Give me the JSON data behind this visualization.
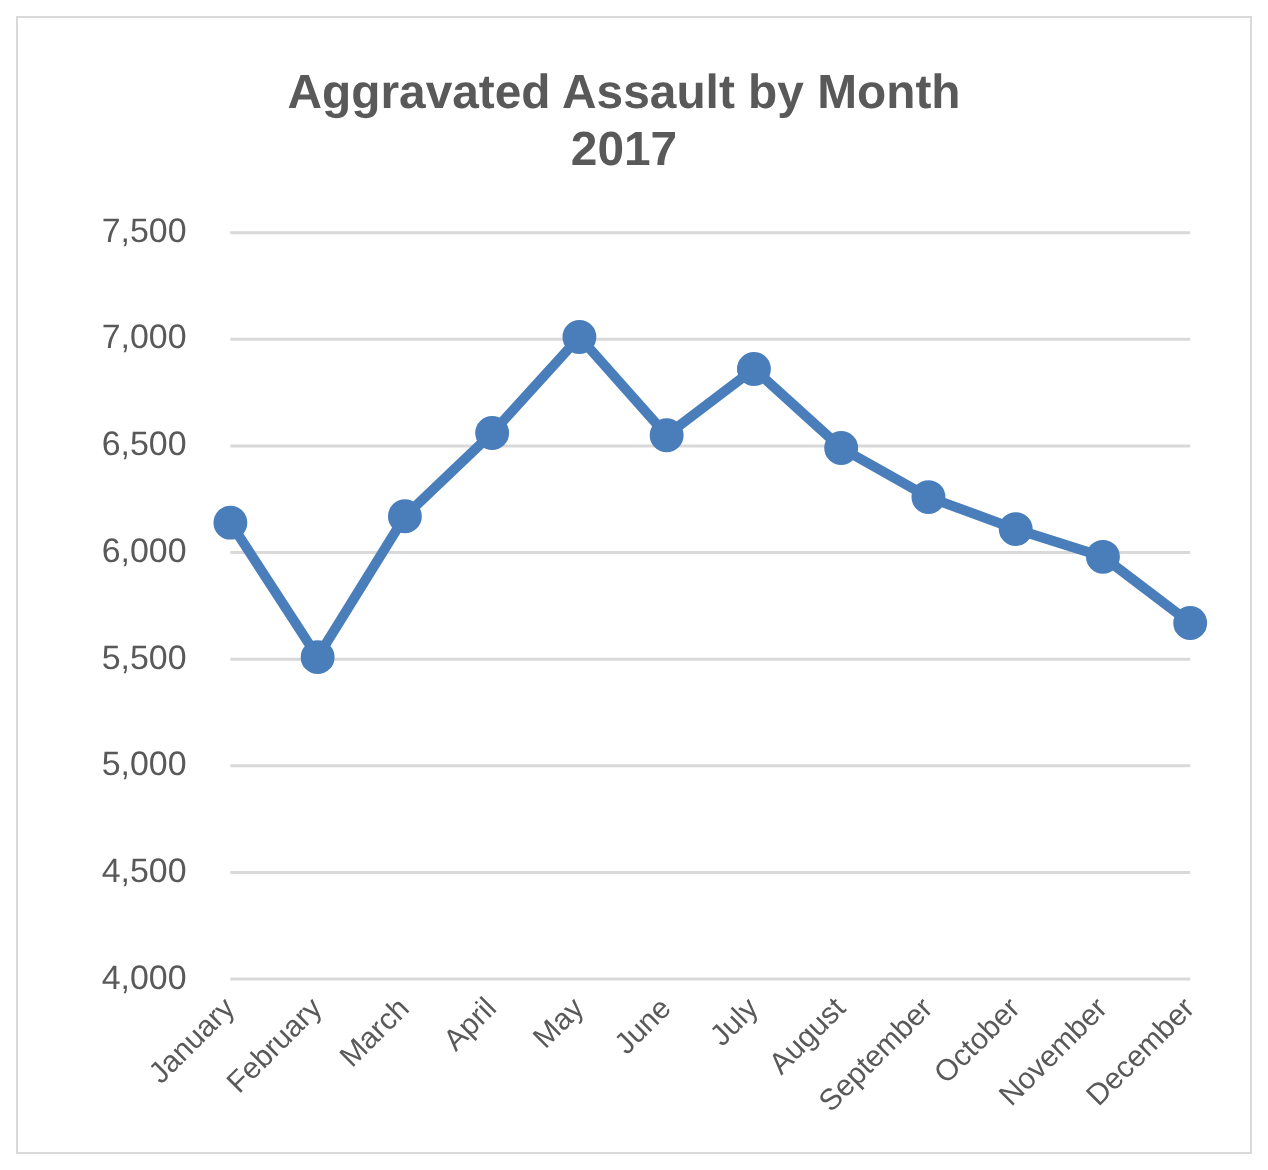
{
  "chart_data": {
    "type": "line",
    "title": [
      "Aggravated Assault by Month",
      "2017"
    ],
    "categories": [
      "January",
      "February",
      "March",
      "April",
      "May",
      "June",
      "July",
      "August",
      "September",
      "October",
      "November",
      "December"
    ],
    "series": [
      {
        "color": "#4a7ebb",
        "values": [
          6140,
          5510,
          6170,
          6560,
          7010,
          6550,
          6860,
          6490,
          6260,
          6110,
          5980,
          5670
        ]
      }
    ],
    "ylim": [
      4000,
      7500
    ],
    "yticks": [
      {
        "value": 4000,
        "label": "4,000"
      },
      {
        "value": 4500,
        "label": "4,500"
      },
      {
        "value": 5000,
        "label": "5,000"
      },
      {
        "value": 5500,
        "label": "5,500"
      },
      {
        "value": 6000,
        "label": "6,000"
      },
      {
        "value": 6500,
        "label": "6,500"
      },
      {
        "value": 7000,
        "label": "7,000"
      },
      {
        "value": 7500,
        "label": "7,500"
      }
    ],
    "grid": "y",
    "legend": false,
    "marker": "circle",
    "line_style": "solid"
  }
}
